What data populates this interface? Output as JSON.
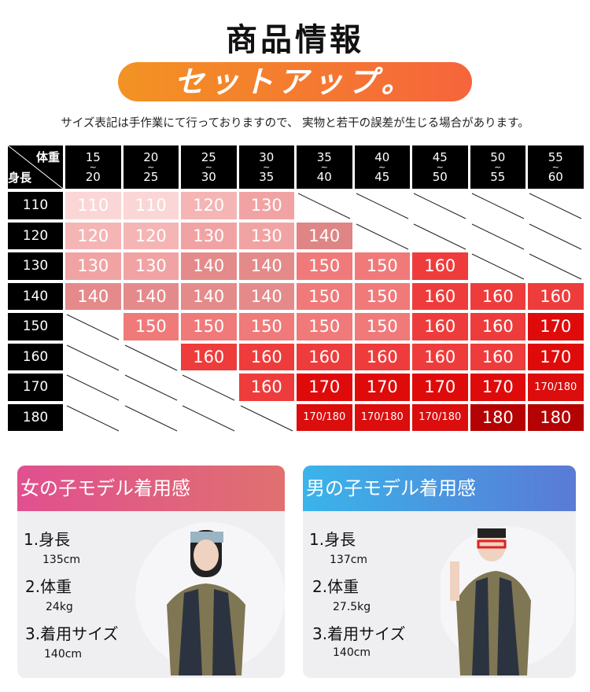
{
  "title": "商品情報",
  "banner": "セットアップ。",
  "note": "サイズ表記は手作業にて行っておりますので、 実物と若干の誤差が生じる場合があります。",
  "size_table": {
    "corner_weight": "体重",
    "corner_height": "身長",
    "weight_columns": [
      {
        "from": "15",
        "to": "20"
      },
      {
        "from": "20",
        "to": "25"
      },
      {
        "from": "25",
        "to": "30"
      },
      {
        "from": "30",
        "to": "35"
      },
      {
        "from": "35",
        "to": "40"
      },
      {
        "from": "40",
        "to": "45"
      },
      {
        "from": "45",
        "to": "50"
      },
      {
        "from": "50",
        "to": "55"
      },
      {
        "from": "55",
        "to": "60"
      }
    ],
    "tilde": "~",
    "rows": [
      {
        "height": "110",
        "cells": [
          "110",
          "110",
          "120",
          "130",
          null,
          null,
          null,
          null,
          null
        ]
      },
      {
        "height": "120",
        "cells": [
          "120",
          "120",
          "130",
          "130",
          "140",
          null,
          null,
          null,
          null
        ]
      },
      {
        "height": "130",
        "cells": [
          "130",
          "130",
          "140",
          "140",
          "150",
          "150",
          "160",
          null,
          null
        ]
      },
      {
        "height": "140",
        "cells": [
          "140",
          "140",
          "140",
          "140",
          "150",
          "150",
          "160",
          "160",
          "160"
        ]
      },
      {
        "height": "150",
        "cells": [
          null,
          "150",
          "150",
          "150",
          "150",
          "150",
          "160",
          "160",
          "170"
        ]
      },
      {
        "height": "160",
        "cells": [
          null,
          null,
          "160",
          "160",
          "160",
          "160",
          "160",
          "160",
          "170"
        ]
      },
      {
        "height": "170",
        "cells": [
          null,
          null,
          null,
          "160",
          "170",
          "170",
          "170",
          "170",
          "170/180"
        ]
      },
      {
        "height": "180",
        "cells": [
          null,
          null,
          null,
          null,
          "170/180",
          "170/180",
          "170/180",
          "180",
          "180"
        ]
      }
    ],
    "colors": {
      "110": "#fbd6d6",
      "120": "#f5b5b5",
      "130": "#f1a3a3",
      "140": "#e58a8a",
      "150": "#f07a7a",
      "160": "#ee3c3c",
      "170": "#df0b0b",
      "170/180": "#dc0d0d",
      "180": "#b50202"
    }
  },
  "models": [
    {
      "title": "女の子モデル着用感",
      "gradient": [
        "#e0508f",
        "#e07070"
      ],
      "items": [
        {
          "label": "1.身長",
          "value": "135cm"
        },
        {
          "label": "2.体重",
          "value": "24kg"
        },
        {
          "label": "3.着用サイズ",
          "value": "140cm"
        }
      ]
    },
    {
      "title": "男の子モデル着用感",
      "gradient": [
        "#3ab4ea",
        "#5a7ad6"
      ],
      "items": [
        {
          "label": "1.身長",
          "value": "137cm"
        },
        {
          "label": "2.体重",
          "value": "27.5kg"
        },
        {
          "label": "3.着用サイズ",
          "value": "140cm"
        }
      ]
    }
  ]
}
